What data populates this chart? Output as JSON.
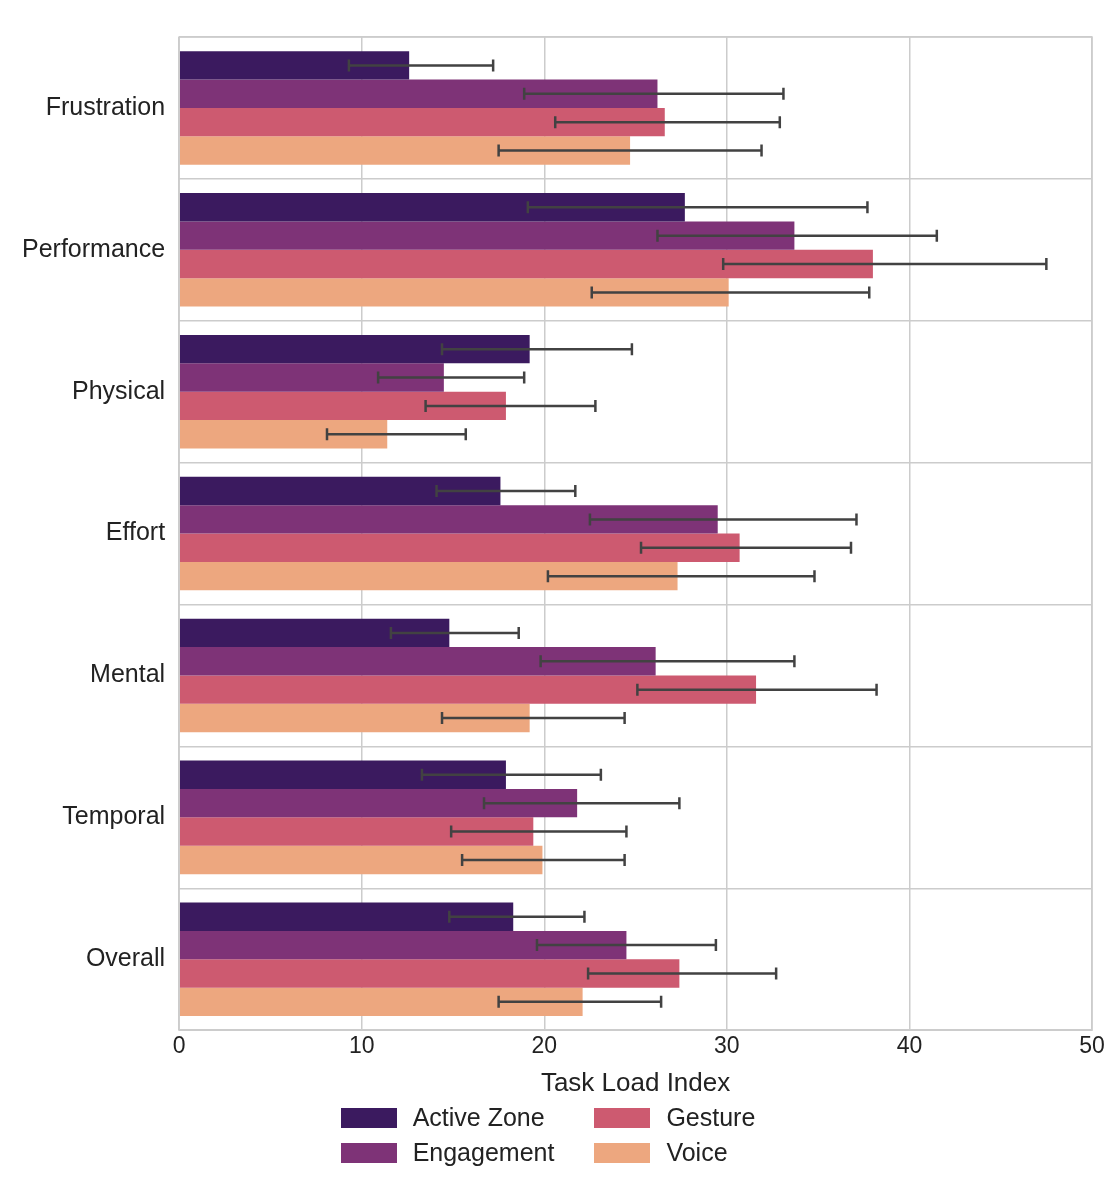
{
  "chart_data": {
    "type": "bar",
    "orientation": "horizontal",
    "xlabel": "Task Load Index",
    "categories": [
      "Frustration",
      "Performance",
      "Physical",
      "Effort",
      "Mental",
      "Temporal",
      "Overall"
    ],
    "xlim": [
      0,
      50
    ],
    "xticks": [
      0,
      10,
      20,
      30,
      40,
      50
    ],
    "grid": true,
    "legend": "bottom",
    "series": [
      {
        "name": "Active Zone",
        "color": "#3b1a5f",
        "values": [
          12.6,
          27.7,
          19.2,
          17.6,
          14.8,
          17.9,
          18.3
        ],
        "errors": [
          [
            9.3,
            17.2
          ],
          [
            19.1,
            37.7
          ],
          [
            14.4,
            24.8
          ],
          [
            14.1,
            21.7
          ],
          [
            11.6,
            18.6
          ],
          [
            13.3,
            23.1
          ],
          [
            14.8,
            22.2
          ]
        ]
      },
      {
        "name": "Engagement",
        "color": "#7e3377",
        "values": [
          26.2,
          33.7,
          14.5,
          29.5,
          26.1,
          21.8,
          24.5
        ],
        "errors": [
          [
            18.9,
            33.1
          ],
          [
            26.2,
            41.5
          ],
          [
            10.9,
            18.9
          ],
          [
            22.5,
            37.1
          ],
          [
            19.8,
            33.7
          ],
          [
            16.7,
            27.4
          ],
          [
            19.6,
            29.4
          ]
        ]
      },
      {
        "name": "Gesture",
        "color": "#cd5a70",
        "values": [
          26.6,
          38.0,
          17.9,
          30.7,
          31.6,
          19.4,
          27.4
        ],
        "errors": [
          [
            20.6,
            32.9
          ],
          [
            29.8,
            47.5
          ],
          [
            13.5,
            22.8
          ],
          [
            25.3,
            36.8
          ],
          [
            25.1,
            38.2
          ],
          [
            14.9,
            24.5
          ],
          [
            22.4,
            32.7
          ]
        ]
      },
      {
        "name": "Voice",
        "color": "#eda77f",
        "values": [
          24.7,
          30.1,
          11.4,
          27.3,
          19.2,
          19.9,
          22.1
        ],
        "errors": [
          [
            17.5,
            31.9
          ],
          [
            22.6,
            37.8
          ],
          [
            8.1,
            15.7
          ],
          [
            20.2,
            34.8
          ],
          [
            14.4,
            24.4
          ],
          [
            15.5,
            24.4
          ],
          [
            17.5,
            26.4
          ]
        ]
      }
    ]
  }
}
